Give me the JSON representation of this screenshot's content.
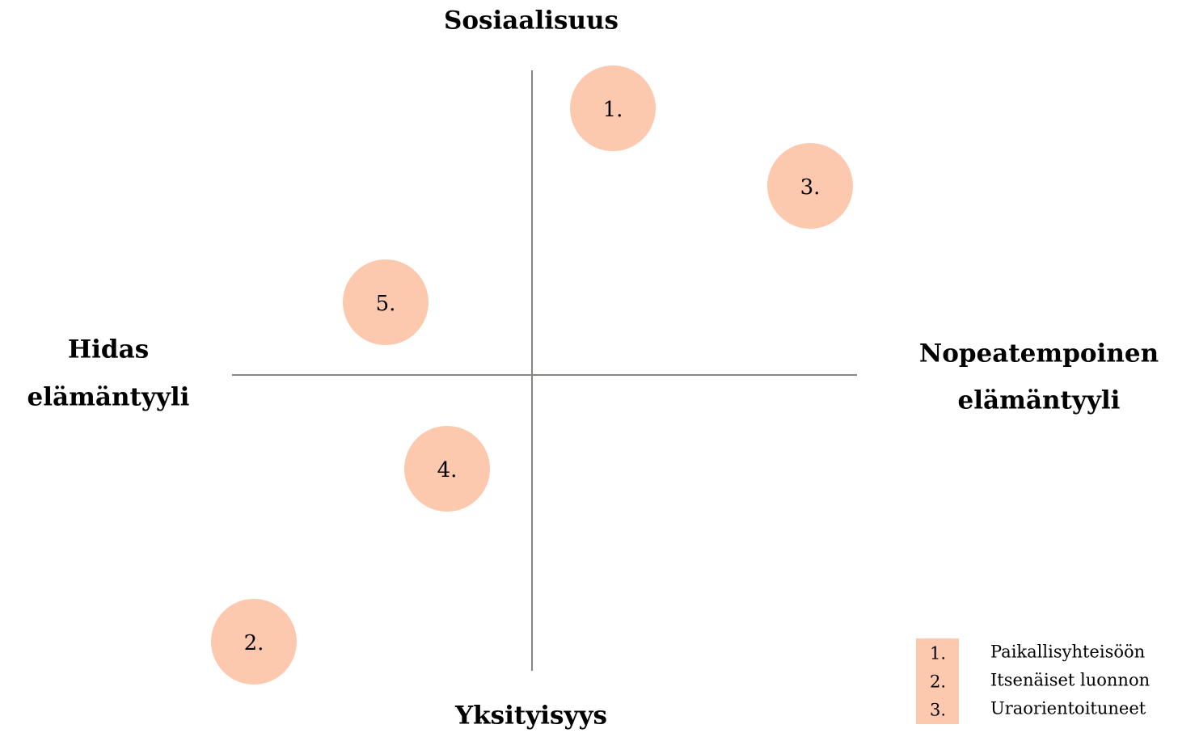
{
  "axes": {
    "top": "Sosiaalisuus",
    "bottom": "Yksityisyys",
    "left": [
      "Hidas",
      "elämäntyyli"
    ],
    "right": [
      "Nopeatempoinen",
      "elämäntyyli"
    ]
  },
  "points": [
    "1.",
    "3.",
    "5.",
    "4.",
    "2."
  ],
  "legend": [
    {
      "number": "1.",
      "text": "Paikallisyhteisöön"
    },
    {
      "number": "2.",
      "text": "Itsenäiset luonnon"
    },
    {
      "number": "3.",
      "text": "Uraorientoituneet"
    }
  ]
}
